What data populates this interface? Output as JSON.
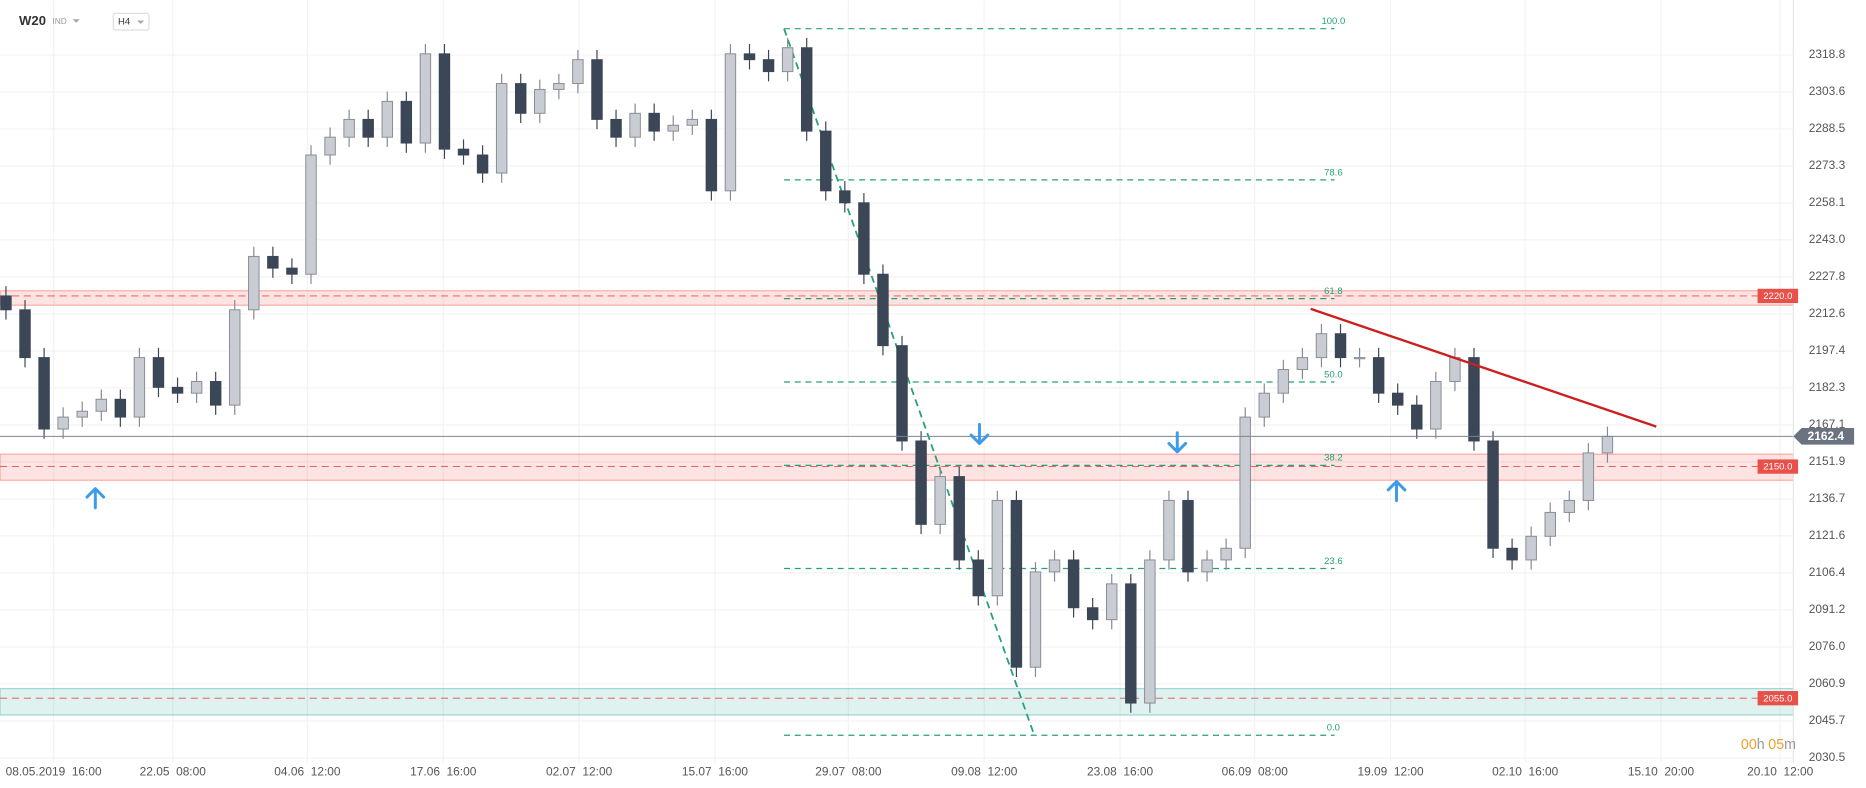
{
  "header": {
    "symbol": "W20",
    "market": "IND",
    "interval": "H4",
    "countdown": [
      "00",
      "h",
      "05",
      "m"
    ]
  },
  "chart_data": {
    "type": "candlestick",
    "up_color": "#c9cdd3",
    "up_stroke": "#858b94",
    "down_color": "#3b4656",
    "xlim": [
      -0.3125,
      93.75
    ],
    "ylim": [
      2028.5,
      2341.3
    ],
    "xticks": [
      {
        "value": 2.5,
        "label": "08.05.2019  16:00"
      },
      {
        "value": 8.75,
        "label": "22.05  08:00"
      },
      {
        "value": 15.8125,
        "label": "04.06  12:00"
      },
      {
        "value": 22.9375,
        "label": "17.06  16:00"
      },
      {
        "value": 30.0625,
        "label": "02.07  12:00"
      },
      {
        "value": 37.1875,
        "label": "15.07  16:00"
      },
      {
        "value": 44.1875,
        "label": "29.07  08:00"
      },
      {
        "value": 51.3125,
        "label": "09.08  12:00"
      },
      {
        "value": 58.4375,
        "label": "23.08  16:00"
      },
      {
        "value": 65.5,
        "label": "06.09  08:00"
      },
      {
        "value": 72.625,
        "label": "19.09  12:00"
      },
      {
        "value": 79.6875,
        "label": "02.10  16:00"
      },
      {
        "value": 86.8125,
        "label": "15.10  20:00"
      },
      {
        "value": 93.0625,
        "label": "20.10  12:00"
      }
    ],
    "yticks": [
      2318.8,
      2303.6,
      2288.5,
      2273.3,
      2258.1,
      {
        "value": 2243,
        "label": "2243.0"
      },
      2227.8,
      2212.6,
      2197.4,
      2182.3,
      2167.1,
      2151.9,
      2136.7,
      2121.6,
      2106.4,
      2091.2,
      {
        "value": 2076,
        "label": "2076.0"
      },
      2060.9,
      2045.7,
      2030.5
    ],
    "grid": true,
    "open": [
      2220.0,
      2214.3,
      2194.7,
      2165.4,
      2170.3,
      2172.7,
      2177.6,
      2170.3,
      2194.7,
      2182.5,
      2180.1,
      2184.9,
      2175.2,
      2214.3,
      2236.2,
      2231.4,
      2228.9,
      2277.8,
      2285.1,
      2292.4,
      2285.1,
      2299.8,
      2282.7,
      2319.3,
      2280.2,
      2277.8,
      2270.4,
      2307.1,
      2294.9,
      2304.7,
      2307.1,
      2316.9,
      2292.4,
      2285.1,
      2294.9,
      2287.6,
      2290.0,
      2292.4,
      2263.1,
      2319.3,
      2316.9,
      2312.0,
      2321.8,
      2287.6,
      2263.1,
      2258.2,
      2228.9,
      2199.6,
      2160.5,
      2126.3,
      2145.9,
      2111.7,
      2097.0,
      2136.1,
      2067.7,
      2106.8,
      2111.7,
      2092.1,
      2087.2,
      2101.9,
      2053.0,
      2111.7,
      2136.1,
      2106.8,
      2111.7,
      2116.5,
      2170.3,
      2180.1,
      2189.8,
      2194.7,
      2204.5,
      2194.7,
      2194.7,
      2180.1,
      2175.2,
      2165.4,
      2184.9,
      2194.7,
      2160.5,
      2116.5,
      2111.7,
      2121.4,
      2131.2,
      2136.1,
      2155.6
    ],
    "high": [
      2224.0,
      2218.3,
      2198.7,
      2174.3,
      2176.7,
      2181.6,
      2181.6,
      2198.7,
      2198.7,
      2186.5,
      2188.9,
      2188.9,
      2218.3,
      2240.2,
      2240.2,
      2235.4,
      2281.8,
      2289.1,
      2296.4,
      2296.4,
      2303.8,
      2303.8,
      2323.3,
      2323.3,
      2284.2,
      2281.8,
      2311.1,
      2311.1,
      2308.7,
      2311.1,
      2320.9,
      2320.9,
      2296.4,
      2298.9,
      2298.9,
      2294.0,
      2296.4,
      2296.4,
      2323.3,
      2323.3,
      2320.9,
      2325.8,
      2325.8,
      2291.6,
      2267.1,
      2262.2,
      2232.9,
      2203.6,
      2164.5,
      2149.9,
      2149.9,
      2115.7,
      2140.1,
      2140.1,
      2110.8,
      2115.7,
      2115.7,
      2096.1,
      2105.9,
      2105.9,
      2115.7,
      2140.1,
      2140.1,
      2115.7,
      2120.5,
      2174.3,
      2184.1,
      2193.8,
      2198.7,
      2208.5,
      2208.5,
      2198.7,
      2198.7,
      2184.1,
      2179.2,
      2188.9,
      2198.7,
      2198.7,
      2164.5,
      2120.5,
      2125.4,
      2135.2,
      2140.1,
      2159.6,
      2166.4
    ],
    "low": [
      2210.3,
      2190.7,
      2161.4,
      2161.4,
      2166.3,
      2168.7,
      2166.3,
      2166.3,
      2178.5,
      2176.1,
      2176.1,
      2171.2,
      2171.2,
      2210.3,
      2227.4,
      2224.9,
      2224.9,
      2273.8,
      2281.1,
      2281.1,
      2281.1,
      2278.7,
      2278.7,
      2276.2,
      2273.8,
      2266.4,
      2266.4,
      2290.9,
      2290.9,
      2300.7,
      2303.1,
      2288.4,
      2281.1,
      2281.1,
      2283.6,
      2283.6,
      2286.0,
      2259.1,
      2259.1,
      2312.9,
      2308.0,
      2308.0,
      2283.6,
      2259.1,
      2254.2,
      2224.9,
      2195.6,
      2156.5,
      2122.3,
      2122.3,
      2107.7,
      2093.0,
      2093.0,
      2063.7,
      2063.7,
      2102.8,
      2088.1,
      2083.2,
      2083.2,
      2049.0,
      2049.0,
      2107.7,
      2102.8,
      2102.8,
      2107.7,
      2112.5,
      2166.3,
      2176.1,
      2185.8,
      2190.7,
      2190.7,
      2190.7,
      2176.1,
      2171.2,
      2161.4,
      2161.4,
      2180.9,
      2156.5,
      2112.5,
      2107.7,
      2107.7,
      2117.4,
      2127.2,
      2132.1,
      2151.6
    ],
    "close": [
      2214.3,
      2194.7,
      2165.4,
      2170.3,
      2172.7,
      2177.6,
      2170.3,
      2194.7,
      2182.5,
      2180.1,
      2184.9,
      2175.2,
      2214.3,
      2236.2,
      2231.4,
      2228.9,
      2277.8,
      2285.1,
      2292.4,
      2285.1,
      2299.8,
      2282.7,
      2319.3,
      2280.2,
      2277.8,
      2270.4,
      2307.1,
      2294.9,
      2304.7,
      2307.1,
      2316.9,
      2292.4,
      2285.1,
      2294.9,
      2287.6,
      2290.0,
      2292.4,
      2263.1,
      2319.3,
      2316.9,
      2312.0,
      2321.8,
      2287.6,
      2263.1,
      2258.2,
      2228.9,
      2199.6,
      2160.5,
      2126.3,
      2145.9,
      2111.7,
      2097.0,
      2136.1,
      2067.7,
      2106.8,
      2111.7,
      2092.1,
      2087.2,
      2101.9,
      2053.0,
      2111.7,
      2136.1,
      2106.8,
      2111.7,
      2116.5,
      2170.3,
      2180.1,
      2189.8,
      2194.7,
      2204.5,
      2194.7,
      2194.7,
      2180.1,
      2175.2,
      2165.4,
      2184.9,
      2194.7,
      2160.5,
      2116.5,
      2111.7,
      2121.4,
      2131.2,
      2136.1,
      2155.6,
      2162.4
    ],
    "current_price": 2162.4,
    "zones": [
      {
        "value": 2220,
        "label": "2220.0",
        "top": 2222.1,
        "bottom": 2216.2,
        "color": "#f44336"
      },
      {
        "value": 2150,
        "label": "2150.0",
        "top": 2155.1,
        "bottom": 2144.4,
        "color": "#f44336"
      },
      {
        "value": 2055,
        "label": "2055.0",
        "top": 2058.9,
        "bottom": 2048.1,
        "color": "#26a69a"
      }
    ],
    "fibonacci": {
      "high": 2329.6,
      "low": 2039.8,
      "x": [
        40.8125,
        69.6875
      ],
      "diagonal_x": [
        40.8125,
        53.9375
      ],
      "color": "#26a07a",
      "levels": [
        {
          "value": 100,
          "label": "100.0"
        },
        78.6,
        61.8,
        {
          "value": 50,
          "label": "50.0"
        },
        38.2,
        23.6,
        {
          "value": 0,
          "label": "0.0"
        }
      ]
    },
    "trendline": {
      "x": [
        68.4375,
        86.5625
      ],
      "y": [
        2214.7,
        2166.4
      ],
      "color": "#cc1f1f"
    }
  }
}
